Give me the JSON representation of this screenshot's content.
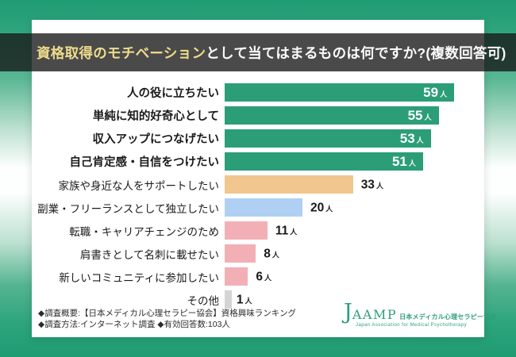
{
  "header": {
    "title_highlight": "資格取得のモチベーション",
    "title_rest": "として当てはまるものは何ですか?(複数回答可)",
    "highlight_color": "#EEDC8C",
    "bar_overlay_color": "rgba(23,23,23,0.78)"
  },
  "chart_data": {
    "type": "bar",
    "orientation": "horizontal",
    "title": "資格取得のモチベーションとして当てはまるものは何ですか?(複数回答可)",
    "unit": "人",
    "xlim": [
      0,
      60
    ],
    "grid": false,
    "legend": "none",
    "categories": [
      "人の役に立ちたい",
      "単純に知的好奇心として",
      "収入アップにつなげたい",
      "自己肯定感・自信をつけたい",
      "家族や身近な人をサポートしたい",
      "副業・フリーランスとして独立したい",
      "転職・キャリアチェンジのため",
      "肩書きとして名刺に載せたい",
      "新しいコミュニティに参加したい",
      "その他"
    ],
    "values": [
      59,
      55,
      53,
      51,
      33,
      20,
      11,
      8,
      6,
      1
    ],
    "rows": [
      {
        "label": "人の役に立ちたい",
        "value": 59,
        "color": "#2B9E77",
        "value_inside": true,
        "label_bold": true
      },
      {
        "label": "単純に知的好奇心として",
        "value": 55,
        "color": "#2B9E77",
        "value_inside": true,
        "label_bold": true
      },
      {
        "label": "収入アップにつなげたい",
        "value": 53,
        "color": "#2B9E77",
        "value_inside": true,
        "label_bold": true
      },
      {
        "label": "自己肯定感・自信をつけたい",
        "value": 51,
        "color": "#2B9E77",
        "value_inside": true,
        "label_bold": true
      },
      {
        "label": "家族や身近な人をサポートしたい",
        "value": 33,
        "color": "#F2C68F",
        "value_inside": false,
        "label_bold": false
      },
      {
        "label": "副業・フリーランスとして独立したい",
        "value": 20,
        "color": "#AFD0F2",
        "value_inside": false,
        "label_bold": false
      },
      {
        "label": "転職・キャリアチェンジのため",
        "value": 11,
        "color": "#F2B0B6",
        "value_inside": false,
        "label_bold": false
      },
      {
        "label": "肩書きとして名刺に載せたい",
        "value": 8,
        "color": "#F2B0B6",
        "value_inside": false,
        "label_bold": false
      },
      {
        "label": "新しいコミュニティに参加したい",
        "value": 6,
        "color": "#F2B0B6",
        "value_inside": false,
        "label_bold": false
      },
      {
        "label": "その他",
        "value": 1,
        "color": "#D4D4D4",
        "value_inside": false,
        "label_bold": false
      }
    ]
  },
  "footer": {
    "line1": "◆調査概要:【日本メディカル心理セラピー協会】資格興味ランキング",
    "line2": "◆調査方法:インターネット調査 ◆有効回答数:103人"
  },
  "logo": {
    "j": "J",
    "aamp": "AAMP",
    "jp_name": "日本メディカル心理セラピー協会",
    "en_name": "Japan Association for Medical Psychotherapy",
    "color": "#2F9E7B"
  }
}
